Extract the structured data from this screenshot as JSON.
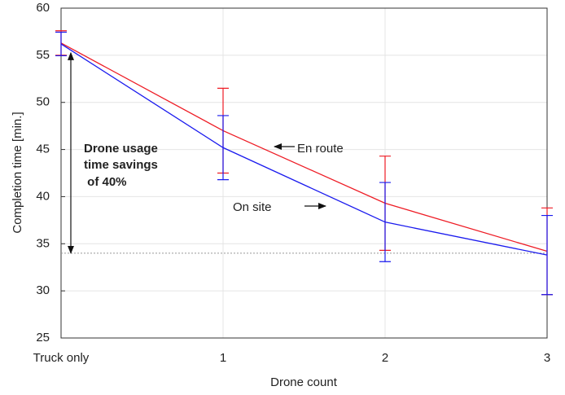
{
  "chart_data": {
    "type": "line",
    "xlabel": "Drone count",
    "ylabel": "Completion time [min.]",
    "categories": [
      "Truck only",
      "1",
      "2",
      "3"
    ],
    "series": [
      {
        "name": "En route",
        "color": "#ee1c25",
        "values": [
          56.3,
          47.0,
          39.3,
          34.2
        ],
        "errors": [
          1.3,
          4.5,
          5.0,
          4.6
        ]
      },
      {
        "name": "On site",
        "color": "#1a1aee",
        "values": [
          56.2,
          45.2,
          37.3,
          33.8
        ],
        "errors": [
          1.25,
          3.4,
          4.2,
          4.2
        ]
      }
    ],
    "reference_line": 34.0,
    "annotation": [
      "Drone usage",
      "time savings",
      " of 40%"
    ],
    "ylim": [
      25,
      60
    ],
    "yticks": [
      25,
      30,
      35,
      40,
      45,
      50,
      55,
      60
    ],
    "grid": true
  }
}
